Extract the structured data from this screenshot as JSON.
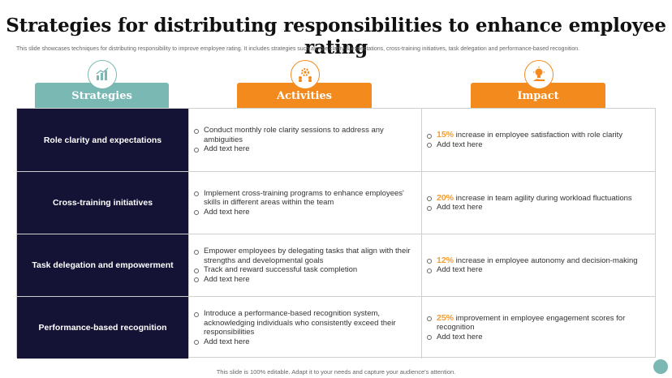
{
  "title": "Strategies for distributing responsibilities to enhance employee rating",
  "subtitle": "This slide showcases techniques for distributing responsibility to improve employee rating. It includes strategies such as role clarity & expectations, cross-training initiatives, task delegation and performance-based recognition.",
  "colors": {
    "teal": "#79b8b3",
    "orange": "#f38a1d",
    "navy": "#141336",
    "accent_pct": "#f39c32"
  },
  "headers": {
    "strategies": "Strategies",
    "activities": "Activities",
    "impact": "Impact",
    "strategies_icon": "bar-chart-growth-icon",
    "activities_icon": "gear-people-icon",
    "impact_icon": "lightbulb-hand-icon"
  },
  "rows": [
    {
      "strategy": "Role clarity and expectations",
      "activities": [
        "Conduct monthly role clarity sessions to address any ambiguities",
        "Add text here"
      ],
      "impact_pct": "15%",
      "impact_text": " increase in employee satisfaction with role clarity",
      "impact_extra": "Add text here"
    },
    {
      "strategy": "Cross-training initiatives",
      "activities": [
        "Implement cross-training programs to enhance employees' skills in different areas within the team",
        "Add text here"
      ],
      "impact_pct": "20%",
      "impact_text": " increase in team agility during workload fluctuations",
      "impact_extra": "Add text here"
    },
    {
      "strategy": "Task delegation and empowerment",
      "activities": [
        "Empower employees by delegating tasks that align with their strengths and developmental goals",
        "Track and reward successful task completion",
        "Add text here"
      ],
      "impact_pct": "12%",
      "impact_text": " increase in employee autonomy and decision-making",
      "impact_extra": "Add text here"
    },
    {
      "strategy": "Performance-based recognition",
      "activities": [
        "Introduce a performance-based recognition system, acknowledging individuals who consistently exceed their responsibilities",
        "Add text here"
      ],
      "impact_pct": "25%",
      "impact_text": " improvement in employee engagement scores for recognition",
      "impact_extra": "Add text here"
    }
  ],
  "footer": "This slide is 100% editable. Adapt it to your needs and capture your audience's attention."
}
